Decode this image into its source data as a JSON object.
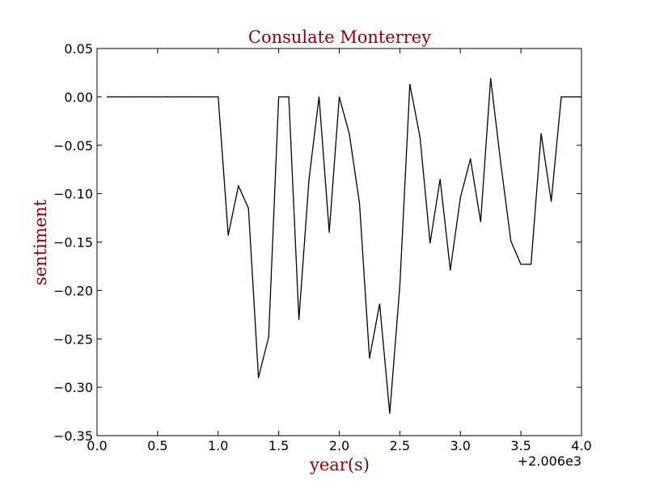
{
  "chart_data": {
    "type": "line",
    "title": "Consulate Monterrey",
    "xlabel": "year(s)",
    "ylabel": "sentiment",
    "x_offset_label": "+2.006e3",
    "xlim": [
      0.0,
      4.0
    ],
    "ylim": [
      -0.35,
      0.05
    ],
    "x_ticks": [
      0.0,
      0.5,
      1.0,
      1.5,
      2.0,
      2.5,
      3.0,
      3.5,
      4.0
    ],
    "x_tick_labels": [
      "0.0",
      "0.5",
      "1.0",
      "1.5",
      "2.0",
      "2.5",
      "3.0",
      "3.5",
      "4.0"
    ],
    "y_ticks": [
      0.05,
      0.0,
      -0.05,
      -0.1,
      -0.15,
      -0.2,
      -0.25,
      -0.3,
      -0.35
    ],
    "y_tick_labels": [
      "0.05",
      "0.00",
      "−0.05",
      "−0.10",
      "−0.15",
      "−0.20",
      "−0.25",
      "−0.30",
      "−0.35"
    ],
    "grid": false,
    "series": [
      {
        "color": "#000000",
        "x": [
          0.083,
          0.167,
          0.25,
          0.333,
          0.417,
          0.5,
          0.583,
          0.667,
          0.75,
          0.833,
          0.917,
          1.0,
          1.083,
          1.167,
          1.25,
          1.333,
          1.417,
          1.5,
          1.583,
          1.667,
          1.75,
          1.833,
          1.917,
          2.0,
          2.083,
          2.167,
          2.25,
          2.333,
          2.417,
          2.5,
          2.583,
          2.667,
          2.75,
          2.833,
          2.917,
          3.0,
          3.083,
          3.167,
          3.25,
          3.333,
          3.417,
          3.5,
          3.583,
          3.667,
          3.75,
          3.833,
          3.917,
          4.0
        ],
        "y": [
          0.0,
          0.0,
          0.0,
          0.0,
          0.0,
          0.0,
          0.0,
          0.0,
          0.0,
          0.0,
          0.0,
          0.0,
          -0.143,
          -0.092,
          -0.115,
          -0.29,
          -0.248,
          0.0,
          0.0,
          -0.23,
          -0.085,
          0.0,
          -0.14,
          0.0,
          -0.038,
          -0.11,
          -0.27,
          -0.214,
          -0.327,
          -0.195,
          0.013,
          -0.042,
          -0.151,
          -0.085,
          -0.179,
          -0.104,
          -0.064,
          -0.129,
          0.019,
          -0.068,
          -0.149,
          -0.173,
          -0.173,
          -0.038,
          -0.108,
          0.0,
          0.0,
          0.0
        ]
      }
    ]
  }
}
